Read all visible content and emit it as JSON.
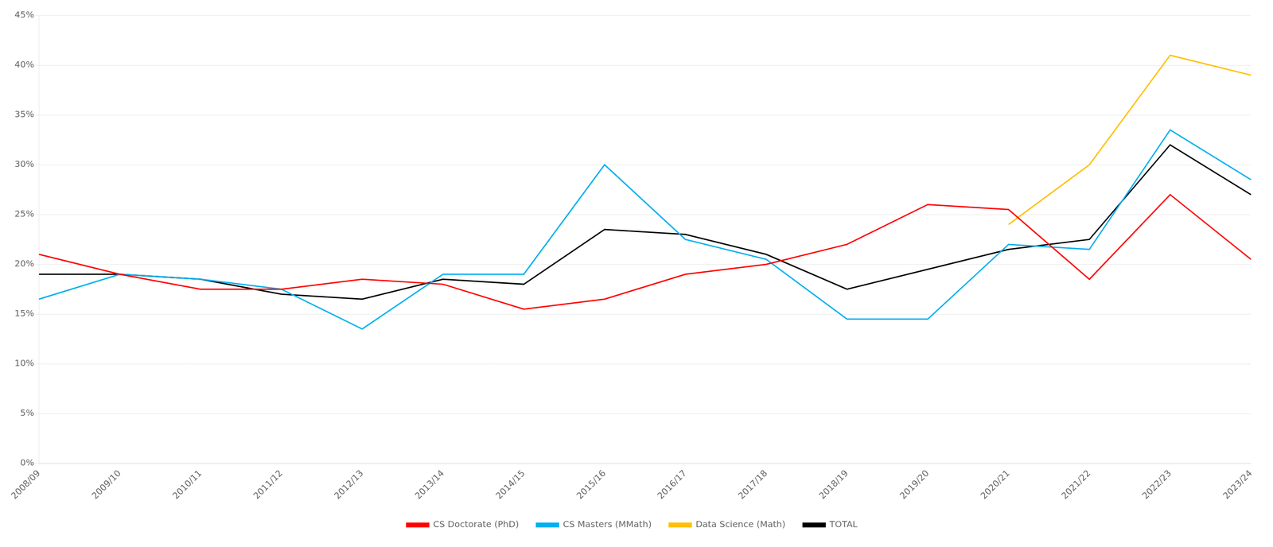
{
  "chart_data": {
    "type": "line",
    "categories": [
      "2008/09",
      "2009/10",
      "2010/11",
      "2011/12",
      "2012/13",
      "2013/14",
      "2014/15",
      "2015/16",
      "2016/17",
      "2017/18",
      "2018/19",
      "2019/20",
      "2020/21",
      "2021/22",
      "2022/23",
      "2023/24"
    ],
    "series": [
      {
        "name": "CS Doctorate (PhD)",
        "color": "#FF0000",
        "values": [
          0.21,
          0.19,
          0.175,
          0.175,
          0.185,
          0.18,
          0.155,
          0.165,
          0.19,
          0.2,
          0.22,
          0.26,
          0.255,
          0.185,
          0.27,
          0.205
        ]
      },
      {
        "name": "CS Masters (MMath)",
        "color": "#00B0F0",
        "values": [
          0.165,
          0.19,
          0.185,
          0.175,
          0.135,
          0.19,
          0.19,
          0.3,
          0.225,
          0.205,
          0.145,
          0.145,
          0.22,
          0.215,
          0.335,
          0.285
        ]
      },
      {
        "name": "Data Science (Math)",
        "color": "#FFC000",
        "values": [
          null,
          null,
          null,
          null,
          null,
          null,
          null,
          null,
          null,
          null,
          null,
          null,
          0.24,
          0.3,
          0.41,
          0.39
        ]
      },
      {
        "name": "TOTAL",
        "color": "#000000",
        "values": [
          0.19,
          0.19,
          0.185,
          0.17,
          0.165,
          0.185,
          0.18,
          0.235,
          0.23,
          0.21,
          0.175,
          0.195,
          0.215,
          0.225,
          0.32,
          0.27
        ]
      }
    ],
    "ylim": [
      0.0,
      0.45
    ],
    "yticks": [
      {
        "value": 0.0,
        "label": "0%"
      },
      {
        "value": 0.05,
        "label": "5%"
      },
      {
        "value": 0.1,
        "label": "10%"
      },
      {
        "value": 0.15,
        "label": "15%"
      },
      {
        "value": 0.2,
        "label": "20%"
      },
      {
        "value": 0.25,
        "label": "25%"
      },
      {
        "value": 0.3,
        "label": "30%"
      },
      {
        "value": 0.35,
        "label": "35%"
      },
      {
        "value": 0.4,
        "label": "40%"
      },
      {
        "value": 0.45,
        "label": "45%"
      }
    ],
    "grid": true,
    "legend": "bottom"
  }
}
